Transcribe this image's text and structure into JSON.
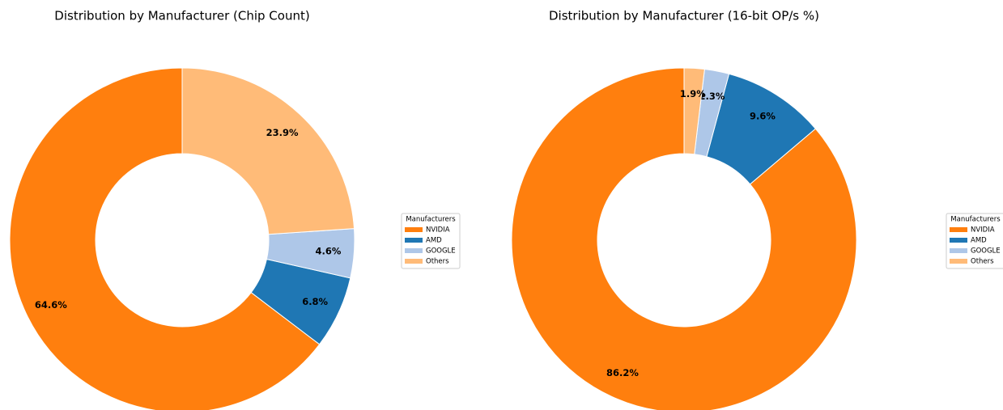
{
  "chart_data": [
    {
      "type": "pie",
      "title": "Distribution by Manufacturer (Chip Count)",
      "categories": [
        "NVIDIA",
        "AMD",
        "GOOGLE",
        "Others"
      ],
      "values": [
        64.6,
        6.8,
        4.6,
        23.9
      ],
      "value_labels": [
        "64.6%",
        "6.8%",
        "4.6%",
        "23.9%"
      ],
      "colors": [
        "#ff7f0e",
        "#1f77b4",
        "#aec7e8",
        "#ffbb78"
      ],
      "legend_title": "Manufacturers",
      "legend": "right"
    },
    {
      "type": "pie",
      "title": "Distribution by Manufacturer (16-bit OP/s %)",
      "categories": [
        "NVIDIA",
        "AMD",
        "GOOGLE",
        "Others"
      ],
      "values": [
        86.2,
        9.6,
        2.3,
        1.9
      ],
      "value_labels": [
        "86.2%",
        "9.6%",
        "2.3%",
        "1.9%"
      ],
      "colors": [
        "#ff7f0e",
        "#1f77b4",
        "#aec7e8",
        "#ffbb78"
      ],
      "legend_title": "Manufacturers",
      "legend": "right"
    }
  ]
}
